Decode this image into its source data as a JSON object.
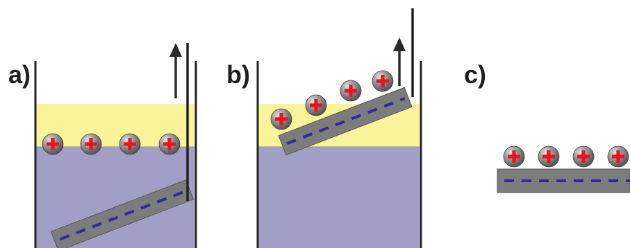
{
  "panels": [
    {
      "label": "a)",
      "particles_at_interface": 4,
      "substrate": "submerged-tilted"
    },
    {
      "label": "b)",
      "particles_on_substrate": 4,
      "substrate": "withdrawn-tilted"
    },
    {
      "label": "c)",
      "particles_on_substrate": 4,
      "substrate": "flat-dried"
    }
  ],
  "particle_charge_symbol": "+",
  "colors": {
    "top_liquid": "#f9f39a",
    "bottom_liquid": "#a29fc6",
    "substrate": "#7c7c7c",
    "substrate_dash": "#2e2a9a",
    "particle": "#8a8a8a",
    "charge": "#e8141f",
    "wall": "#222222",
    "arrow": "#2a2a2a"
  }
}
